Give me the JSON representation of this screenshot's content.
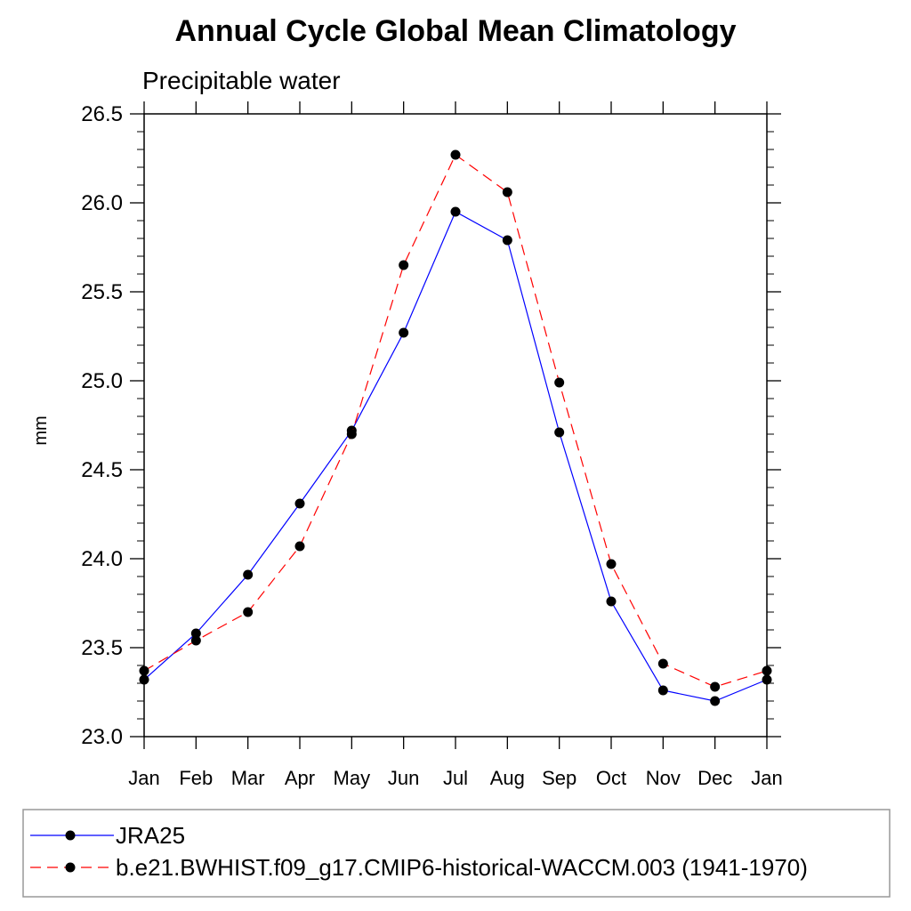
{
  "chart_data": {
    "type": "line",
    "title": "Annual Cycle Global Mean Climatology",
    "subtitle": "Precipitable water",
    "xlabel": "",
    "ylabel": "mm",
    "ylim": [
      23.0,
      26.5
    ],
    "yticks": [
      "23.0",
      "23.5",
      "24.0",
      "24.5",
      "25.0",
      "25.5",
      "26.0",
      "26.5"
    ],
    "categories": [
      "Jan",
      "Feb",
      "Mar",
      "Apr",
      "May",
      "Jun",
      "Jul",
      "Aug",
      "Sep",
      "Oct",
      "Nov",
      "Dec",
      "Jan"
    ],
    "grid": false,
    "legend_position": "bottom",
    "series": [
      {
        "name": "JRA25",
        "color": "#0000ff",
        "dash": "solid",
        "marker": "filled-circle",
        "values": [
          23.32,
          23.58,
          23.91,
          24.31,
          24.72,
          25.27,
          25.95,
          25.79,
          24.71,
          23.76,
          23.26,
          23.2,
          23.32
        ]
      },
      {
        "name": "b.e21.BWHIST.f09_g17.CMIP6-historical-WACCM.003 (1941-1970)",
        "color": "#ff0000",
        "dash": "dashed",
        "marker": "filled-circle",
        "values": [
          23.37,
          23.54,
          23.7,
          24.07,
          24.7,
          25.65,
          26.27,
          26.06,
          24.99,
          23.97,
          23.41,
          23.28,
          23.37
        ]
      }
    ]
  }
}
